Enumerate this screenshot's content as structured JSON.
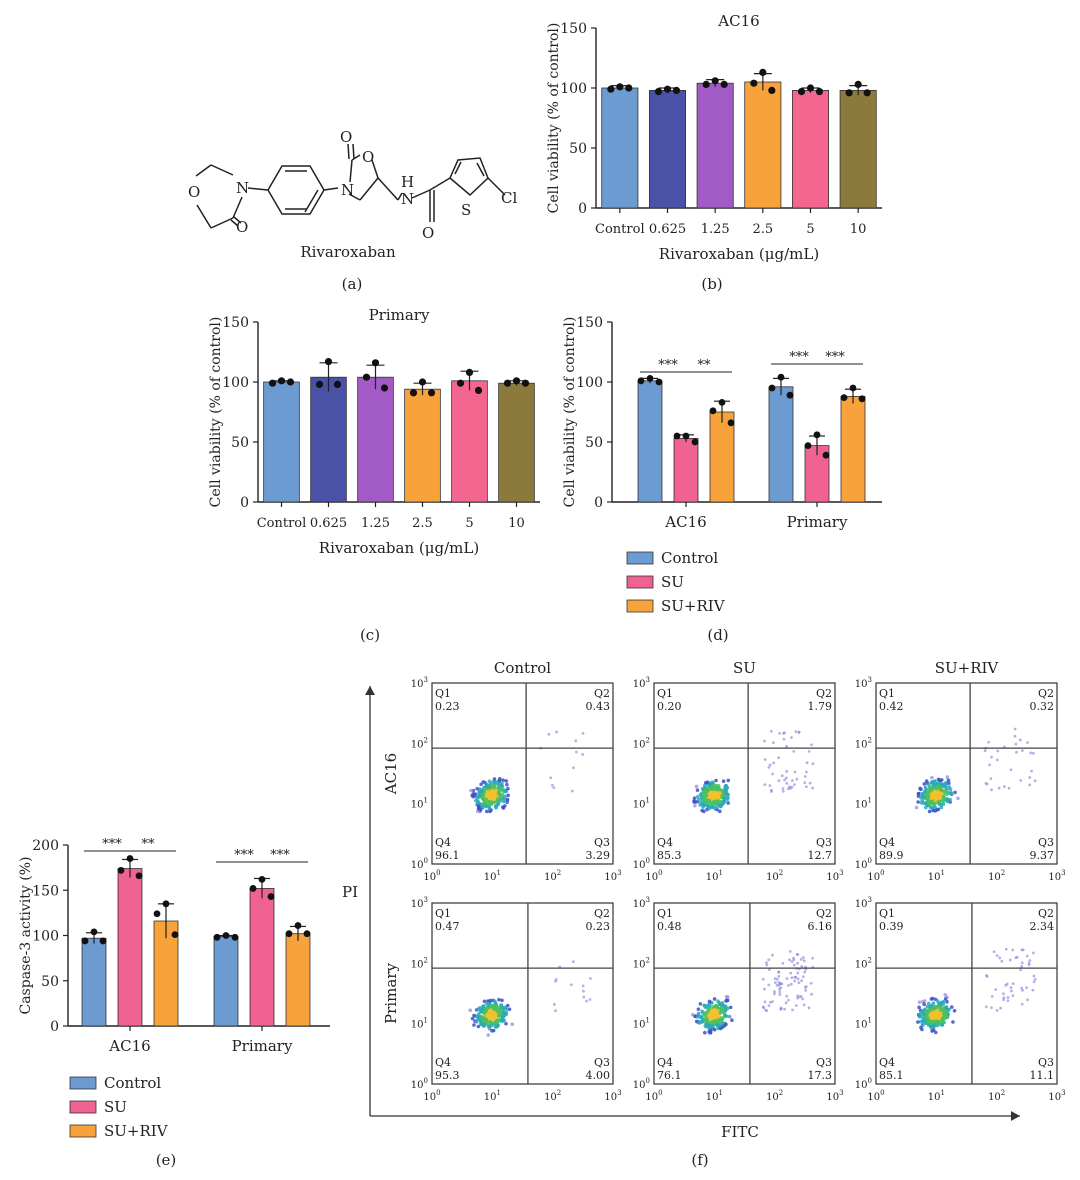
{
  "colors": {
    "control": "#6c9bd2",
    "su": "#f06292",
    "su_riv": "#f7a23a",
    "group_b": "#4a52a8",
    "group_c": "#a25ac4",
    "group_e": "#f3668f",
    "group_f": "#8c7a3c",
    "axis": "#222222",
    "dot": "#111111"
  },
  "panel_labels": {
    "a": "(a)",
    "b": "(b)",
    "c": "(c)",
    "d": "(d)",
    "e": "(e)",
    "f": "(f)"
  },
  "structure": {
    "name": "Rivaroxaban",
    "atoms": [
      "O",
      "N",
      "O",
      "O",
      "N",
      "N",
      "H",
      "S",
      "Cl",
      "O",
      "O"
    ]
  },
  "chart_data": [
    {
      "id": "b",
      "type": "bar",
      "title": "AC16",
      "xlabel": "Rivaroxaban (μg/mL)",
      "ylabel": "Cell viability (% of control)",
      "ylim": [
        0,
        150
      ],
      "yticks": [
        0,
        50,
        100,
        150
      ],
      "categories": [
        "Control",
        "0.625",
        "1.25",
        "2.5",
        "5",
        "10"
      ],
      "values": [
        100,
        98,
        104,
        105,
        98,
        98
      ],
      "errors": [
        2,
        2,
        3,
        7,
        2,
        4
      ],
      "points": [
        [
          101,
          99,
          100
        ],
        [
          99,
          97,
          98
        ],
        [
          106,
          103,
          103
        ],
        [
          113,
          104,
          98
        ],
        [
          100,
          97,
          97
        ],
        [
          103,
          96,
          96
        ]
      ],
      "bar_colors": [
        "#6c9bd2",
        "#4a52a8",
        "#a25ac4",
        "#f7a23a",
        "#f3668f",
        "#8c7a3c"
      ]
    },
    {
      "id": "c",
      "type": "bar",
      "title": "Primary",
      "xlabel": "Rivaroxaban (μg/mL)",
      "ylabel": "Cell viability (% of control)",
      "ylim": [
        0,
        150
      ],
      "yticks": [
        0,
        50,
        100,
        150
      ],
      "categories": [
        "Control",
        "0.625",
        "1.25",
        "2.5",
        "5",
        "10"
      ],
      "values": [
        100,
        104,
        104,
        94,
        101,
        99
      ],
      "errors": [
        1,
        12,
        10,
        5,
        8,
        2
      ],
      "points": [
        [
          101,
          99,
          100
        ],
        [
          117,
          98,
          98
        ],
        [
          116,
          104,
          95
        ],
        [
          100,
          91,
          91
        ],
        [
          108,
          99,
          93
        ],
        [
          101,
          99,
          99
        ]
      ],
      "bar_colors": [
        "#6c9bd2",
        "#4a52a8",
        "#a25ac4",
        "#f7a23a",
        "#f3668f",
        "#8c7a3c"
      ]
    },
    {
      "id": "d",
      "type": "bar",
      "ylabel": "Cell viability (% of control)",
      "ylim": [
        0,
        150
      ],
      "yticks": [
        0,
        50,
        100,
        150
      ],
      "categories": [
        "AC16",
        "Primary"
      ],
      "series": [
        {
          "name": "Control",
          "color": "#6c9bd2",
          "values": [
            101,
            96
          ],
          "errors": [
            2,
            7
          ],
          "points": [
            [
              103,
              101,
              100
            ],
            [
              104,
              95,
              89
            ]
          ]
        },
        {
          "name": "SU",
          "color": "#f06292",
          "values": [
            53,
            47
          ],
          "errors": [
            3,
            8
          ],
          "points": [
            [
              55,
              55,
              50
            ],
            [
              56,
              47,
              39
            ]
          ]
        },
        {
          "name": "SU+RIV",
          "color": "#f7a23a",
          "values": [
            75,
            88
          ],
          "errors": [
            9,
            6
          ],
          "points": [
            [
              83,
              76,
              66
            ],
            [
              95,
              87,
              86
            ]
          ]
        }
      ],
      "significance": [
        {
          "group": "AC16",
          "pair": "Control-SU",
          "label": "***"
        },
        {
          "group": "AC16",
          "pair": "SU-SU+RIV",
          "label": "**"
        },
        {
          "group": "Primary",
          "pair": "Control-SU",
          "label": "***"
        },
        {
          "group": "Primary",
          "pair": "SU-SU+RIV",
          "label": "***"
        }
      ],
      "legend": "bottom"
    },
    {
      "id": "e",
      "type": "bar",
      "ylabel": "Caspase-3 activity (%)",
      "ylim": [
        0,
        200
      ],
      "yticks": [
        0,
        50,
        100,
        150,
        200
      ],
      "categories": [
        "AC16",
        "Primary"
      ],
      "series": [
        {
          "name": "Control",
          "color": "#6c9bd2",
          "values": [
            97,
            99
          ],
          "errors": [
            6,
            1
          ],
          "points": [
            [
              104,
              94,
              94
            ],
            [
              100,
              98,
              98
            ]
          ]
        },
        {
          "name": "SU",
          "color": "#f06292",
          "values": [
            174,
            152
          ],
          "errors": [
            10,
            11
          ],
          "points": [
            [
              185,
              172,
              166
            ],
            [
              162,
              152,
              143
            ]
          ]
        },
        {
          "name": "SU+RIV",
          "color": "#f7a23a",
          "values": [
            116,
            102
          ],
          "errors": [
            19,
            8
          ],
          "points": [
            [
              135,
              124,
              101
            ],
            [
              111,
              102,
              102
            ]
          ]
        }
      ],
      "significance": [
        {
          "group": "AC16",
          "pair": "Control-SU",
          "label": "***"
        },
        {
          "group": "AC16",
          "pair": "SU-SU+RIV",
          "label": "**"
        },
        {
          "group": "Primary",
          "pair": "Control-SU",
          "label": "***"
        },
        {
          "group": "Primary",
          "pair": "SU-SU+RIV",
          "label": "***"
        }
      ],
      "legend": "bottom"
    },
    {
      "id": "f",
      "type": "scatter",
      "xlabel": "FITC",
      "ylabel": "PI",
      "columns": [
        "Control",
        "SU",
        "SU+RIV"
      ],
      "rows": [
        "AC16",
        "Primary"
      ],
      "axis_ticks": [
        "10",
        "1",
        "10",
        "2",
        "10",
        "3",
        "10",
        "0"
      ],
      "quadrant_labels": [
        "Q1",
        "Q2",
        "Q3",
        "Q4"
      ],
      "plots": [
        {
          "row": "AC16",
          "col": "Control",
          "q1": "0.23",
          "q2": "0.43",
          "q3": "3.29",
          "q4": "96.1"
        },
        {
          "row": "AC16",
          "col": "SU",
          "q1": "0.20",
          "q2": "1.79",
          "q3": "12.7",
          "q4": "85.3"
        },
        {
          "row": "AC16",
          "col": "SU+RIV",
          "q1": "0.42",
          "q2": "0.32",
          "q3": "9.37",
          "q4": "89.9"
        },
        {
          "row": "Primary",
          "col": "Control",
          "q1": "0.47",
          "q2": "0.23",
          "q3": "4.00",
          "q4": "95.3"
        },
        {
          "row": "Primary",
          "col": "SU",
          "q1": "0.48",
          "q2": "6.16",
          "q3": "17.3",
          "q4": "76.1"
        },
        {
          "row": "Primary",
          "col": "SU+RIV",
          "q1": "0.39",
          "q2": "2.34",
          "q3": "11.1",
          "q4": "85.1"
        }
      ]
    }
  ]
}
